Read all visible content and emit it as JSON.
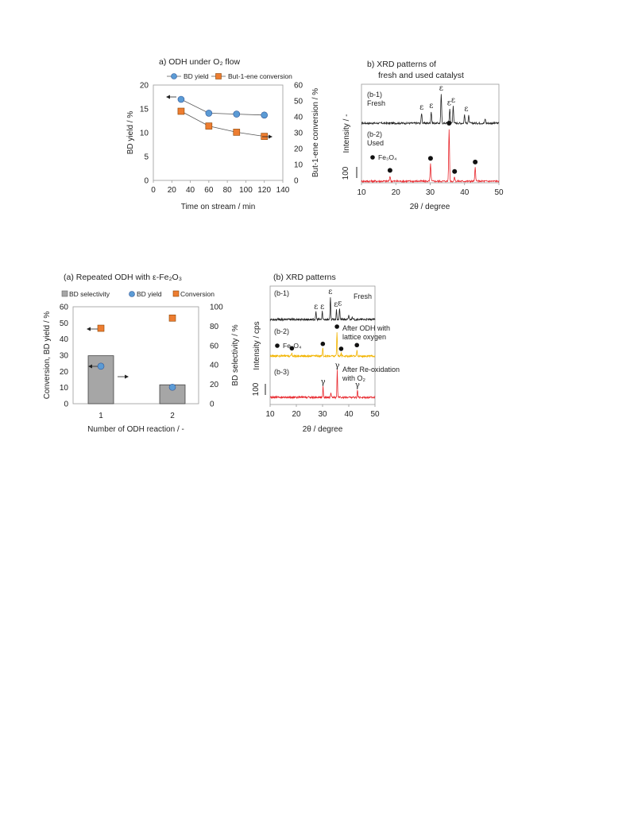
{
  "chart_data": [
    {
      "id": "top-a",
      "type": "line",
      "title": "a) ODH under O₂ flow",
      "xlabel": "Time on stream / min",
      "ylabel": "BD yield / %",
      "y2label": "But-1-ene conversion / %",
      "xlim": [
        0,
        140
      ],
      "ylim": [
        0,
        20
      ],
      "y2lim": [
        0,
        60
      ],
      "xticks": [
        0,
        20,
        40,
        60,
        80,
        100,
        120,
        140
      ],
      "yticks": [
        0,
        5,
        10,
        15,
        20
      ],
      "y2ticks": [
        0,
        10,
        20,
        30,
        40,
        50,
        60
      ],
      "legend_position": "top",
      "series": [
        {
          "name": "BD yield",
          "axis": "left",
          "color": "#5b9bd5",
          "marker": "circle",
          "x": [
            30,
            60,
            90,
            120
          ],
          "values": [
            17.0,
            14.1,
            13.9,
            13.7
          ]
        },
        {
          "name": "But-1-ene conversion",
          "axis": "right",
          "color": "#ed7d31",
          "marker": "square",
          "x": [
            30,
            60,
            90,
            120
          ],
          "values": [
            43.5,
            34.2,
            30.3,
            27.7
          ]
        }
      ]
    },
    {
      "id": "top-b",
      "type": "line",
      "title_line1": "b) XRD patterns of",
      "title_line2": "fresh and used catalyst",
      "xlabel": "2θ / degree",
      "ylabel": "Intensity / -",
      "scale_label": "100",
      "xlim": [
        10,
        50
      ],
      "xticks": [
        10,
        20,
        30,
        40,
        50
      ],
      "traces": [
        {
          "label1": "(b-1)",
          "label2": "Fresh",
          "color": "#222222",
          "peaks": [
            [
              27.5,
              0.35
            ],
            [
              30.3,
              0.4
            ],
            [
              33.2,
              1.0
            ],
            [
              35.7,
              0.5
            ],
            [
              36.7,
              0.6
            ],
            [
              40.0,
              0.3
            ],
            [
              41.2,
              0.25
            ],
            [
              46.0,
              0.15
            ]
          ],
          "marker_label": "ε",
          "markers_x": [
            27.5,
            30.3,
            33.2,
            35.5,
            36.7,
            40.5
          ]
        },
        {
          "label1": "(b-2)",
          "label2": "Used",
          "color": "#e8262c",
          "peaks": [
            [
              18.3,
              0.1
            ],
            [
              30.1,
              0.33
            ],
            [
              35.5,
              1.0
            ],
            [
              37.1,
              0.08
            ],
            [
              43.1,
              0.26
            ]
          ],
          "legend_text": "Fe₃O₄",
          "markers_x": [
            18.3,
            30.1,
            35.5,
            37.1,
            43.1
          ]
        }
      ]
    },
    {
      "id": "bottom-a",
      "type": "bar",
      "title": "(a) Repeated ODH with ε-Fe₂O₃",
      "xlabel": "Number of ODH reaction / -",
      "ylabel": "Conversion, BD yield / %",
      "y2label": "BD selectivity / %",
      "categories": [
        "1",
        "2"
      ],
      "ylim": [
        0,
        60
      ],
      "y2lim": [
        0,
        100
      ],
      "yticks": [
        0,
        10,
        20,
        30,
        40,
        50,
        60
      ],
      "y2ticks": [
        0,
        20,
        40,
        60,
        80,
        100
      ],
      "legend_position": "top",
      "series": [
        {
          "name": "BD selectivity",
          "axis": "right",
          "type": "bar",
          "color": "#a6a6a6",
          "values": [
            49.5,
            19.5
          ]
        },
        {
          "name": "BD yield",
          "axis": "left",
          "type": "scatter",
          "color": "#5b9bd5",
          "values": [
            23.2,
            10.2
          ]
        },
        {
          "name": "Conversion",
          "axis": "left",
          "type": "scatter",
          "color": "#ed7d31",
          "values": [
            46.7,
            53.0
          ]
        }
      ]
    },
    {
      "id": "bottom-b",
      "type": "line",
      "title": "(b) XRD patterns",
      "xlabel": "2θ / degree",
      "ylabel": "Intensity / cps",
      "scale_label": "100",
      "xlim": [
        10,
        50
      ],
      "xticks": [
        10,
        20,
        30,
        40,
        50
      ],
      "traces": [
        {
          "label1": "(b-1)",
          "label2": "Fresh",
          "color": "#222222",
          "peaks": [
            [
              27.5,
              0.35
            ],
            [
              29.9,
              0.35
            ],
            [
              33.0,
              1.0
            ],
            [
              35.3,
              0.45
            ],
            [
              36.5,
              0.5
            ],
            [
              40.0,
              0.2
            ],
            [
              41.3,
              0.15
            ]
          ],
          "marker_label": "ε",
          "markers_x": [
            27.5,
            29.9,
            33.0,
            35.1,
            36.6
          ]
        },
        {
          "label1": "(b-2)",
          "label2": "After ODH with",
          "label3": "lattice oxygen",
          "color": "#f2b400",
          "peaks": [
            [
              18.3,
              0.12
            ],
            [
              30.1,
              0.3
            ],
            [
              35.5,
              1.0
            ],
            [
              37.1,
              0.1
            ],
            [
              43.1,
              0.25
            ]
          ],
          "legend_text": "Fe₃O₄",
          "markers_x": [
            18.3,
            30.1,
            35.5,
            37.1,
            43.1
          ]
        },
        {
          "label1": "(b-3)",
          "label2": "After Re-oxidation",
          "label3": "with O₂",
          "color": "#e8262c",
          "peaks": [
            [
              30.2,
              0.4
            ],
            [
              33.2,
              0.15
            ],
            [
              35.6,
              1.0
            ],
            [
              43.3,
              0.28
            ]
          ],
          "marker_label": "γ",
          "markers_x": [
            30.2,
            35.6,
            43.3
          ]
        }
      ]
    }
  ]
}
